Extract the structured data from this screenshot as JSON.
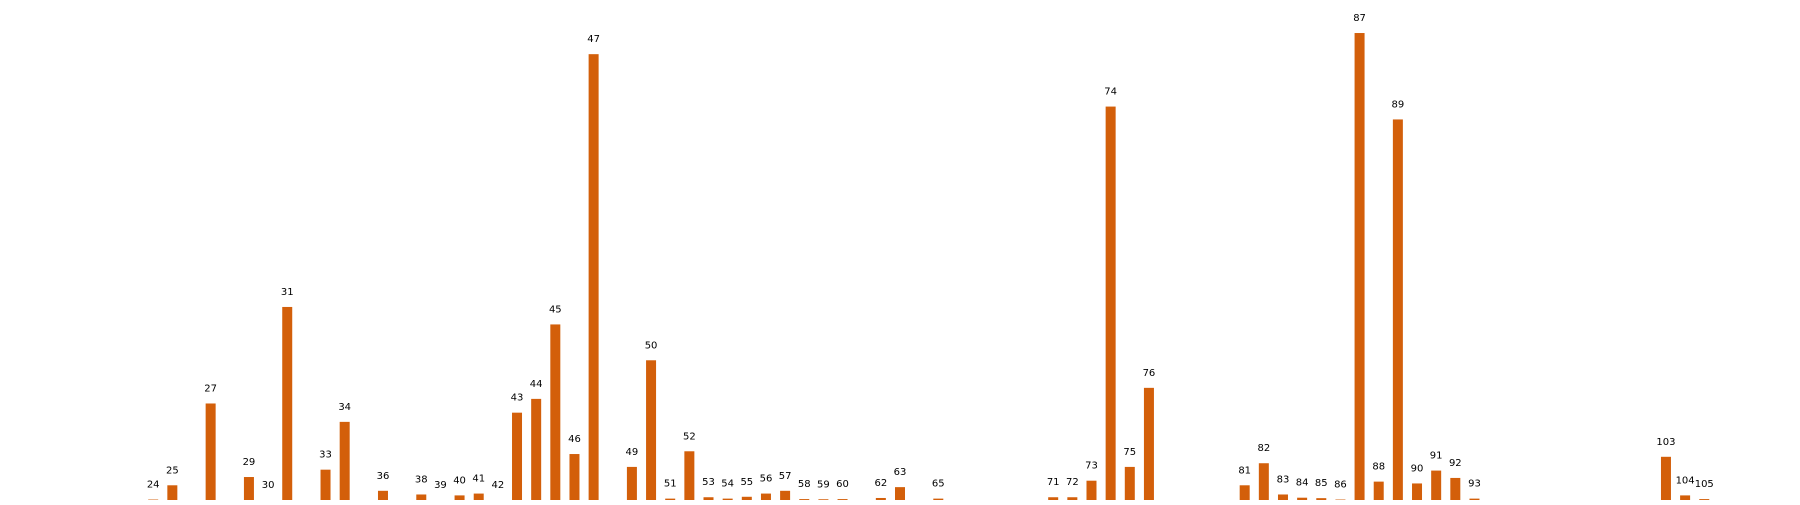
{
  "chart_data": {
    "type": "bar",
    "title": "",
    "xlabel": "",
    "ylabel": "",
    "color": "#d35f0a",
    "grid": false,
    "x": [
      24,
      25,
      27,
      29,
      30,
      31,
      33,
      34,
      36,
      38,
      39,
      40,
      41,
      42,
      43,
      44,
      45,
      46,
      47,
      49,
      50,
      51,
      52,
      53,
      54,
      55,
      56,
      57,
      58,
      59,
      60,
      62,
      63,
      65,
      71,
      72,
      73,
      74,
      75,
      76,
      81,
      82,
      83,
      84,
      85,
      86,
      87,
      88,
      89,
      90,
      91,
      92,
      93,
      103,
      104,
      105
    ],
    "values": [
      0.05,
      1.6,
      10.5,
      2.5,
      0,
      21.0,
      3.3,
      8.5,
      1.0,
      0.6,
      0,
      0.5,
      0.7,
      0,
      9.5,
      11.0,
      19.1,
      5.0,
      48.5,
      3.6,
      15.2,
      0.15,
      5.3,
      0.3,
      0.15,
      0.35,
      0.7,
      1.0,
      0.1,
      0.08,
      0.1,
      0.22,
      1.4,
      0.15,
      0.3,
      0.3,
      2.1,
      42.8,
      3.6,
      12.2,
      1.6,
      4.0,
      0.6,
      0.25,
      0.2,
      0.05,
      50.8,
      2.0,
      41.4,
      1.8,
      3.2,
      2.4,
      0.15,
      4.7,
      0.5,
      0.1
    ],
    "xlim": [
      16,
      110
    ],
    "ylim": [
      0,
      52
    ]
  }
}
